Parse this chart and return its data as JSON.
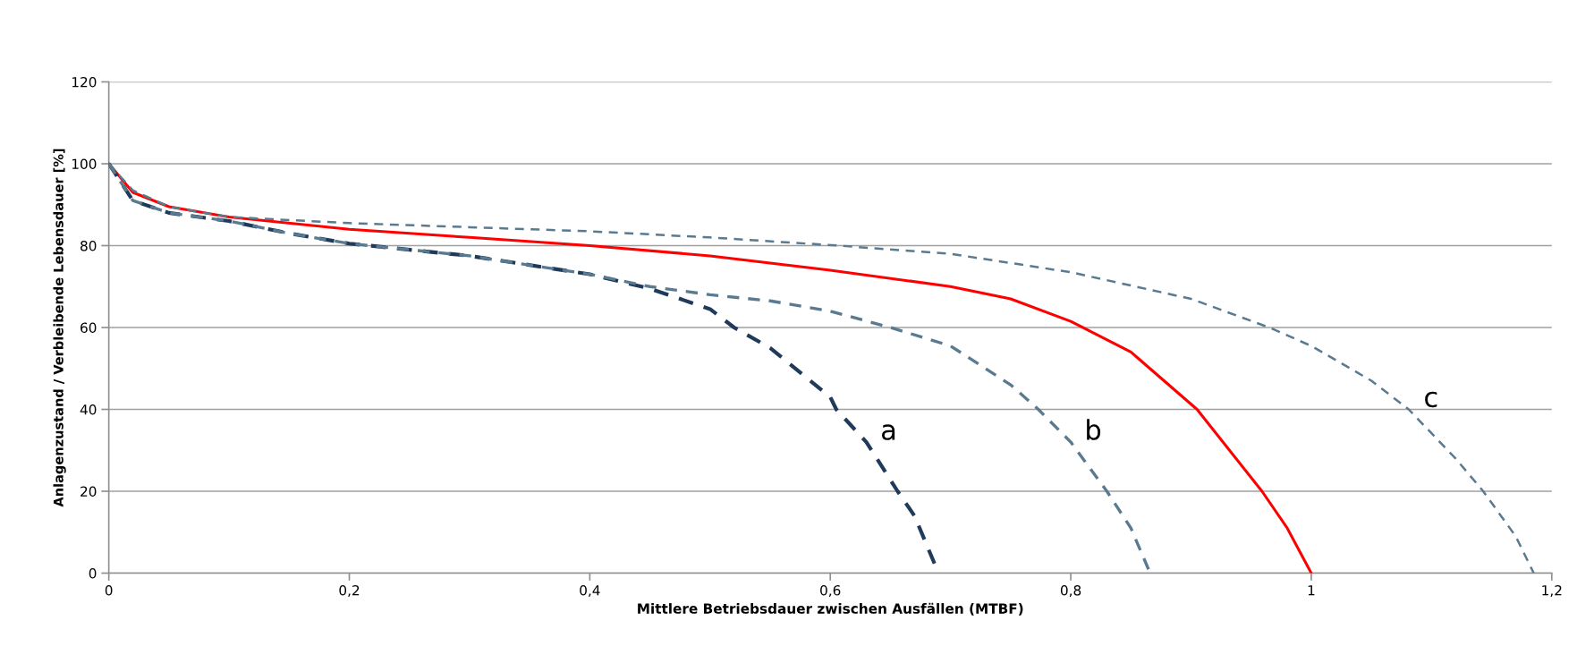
{
  "chart_data": {
    "type": "line",
    "xlabel": "Mittlere Betriebsdauer zwischen Ausfällen (MTBF)",
    "ylabel": "Anlagenzustand / Verbleibende Lebensdauer [%]",
    "xlim": [
      0,
      1.2
    ],
    "ylim": [
      0,
      120
    ],
    "xticks": [
      0,
      {
        "value": 0.2,
        "label": "0,2"
      },
      {
        "value": 0.4,
        "label": "0,4"
      },
      {
        "value": 0.6,
        "label": "0,6"
      },
      {
        "value": 0.8,
        "label": "0,8"
      },
      1,
      {
        "value": 1.2,
        "label": "1,2"
      }
    ],
    "yticks": [
      0,
      20,
      40,
      60,
      80,
      100,
      120
    ],
    "grid": "y",
    "legend": false,
    "marker": "none",
    "series": [
      {
        "color": "#ff0000",
        "line_style": "solid",
        "x": [
          0,
          0.02,
          0.05,
          0.1,
          0.2,
          0.3,
          0.4,
          0.5,
          0.6,
          0.7,
          0.75,
          0.8,
          0.85,
          0.905,
          0.959,
          0.98,
          1.0
        ],
        "values": [
          100,
          93,
          89.5,
          87,
          84,
          82,
          80,
          77.5,
          74,
          70,
          67,
          61.5,
          54,
          40,
          20,
          11,
          0
        ]
      },
      {
        "name": "a",
        "color": "#1f3a5a",
        "line_style": "dashed",
        "x": [
          0,
          0.02,
          0.05,
          0.1,
          0.15,
          0.2,
          0.3,
          0.4,
          0.45,
          0.5,
          0.52,
          0.55,
          0.6,
          0.605,
          0.63,
          0.656,
          0.67,
          0.69
        ],
        "values": [
          100,
          91,
          88,
          86,
          83,
          80.5,
          77.5,
          73,
          69.5,
          64.5,
          60,
          55,
          43,
          40,
          32,
          20,
          14,
          0
        ]
      },
      {
        "name": "b",
        "color": "#5a7a90",
        "line_style": "dashed",
        "x": [
          0,
          0.02,
          0.05,
          0.1,
          0.15,
          0.2,
          0.3,
          0.4,
          0.45,
          0.5,
          0.55,
          0.6,
          0.65,
          0.7,
          0.75,
          0.773,
          0.8,
          0.83,
          0.85,
          0.866
        ],
        "values": [
          100,
          91,
          88,
          86,
          83,
          80.5,
          77.5,
          73,
          70,
          68,
          66.5,
          64,
          60,
          55.5,
          46,
          40,
          32,
          20,
          11,
          0
        ]
      },
      {
        "name": "c",
        "color": "#5a7a90",
        "line_style": "dashed",
        "x": [
          0,
          0.02,
          0.05,
          0.1,
          0.2,
          0.3,
          0.4,
          0.5,
          0.607,
          0.7,
          0.8,
          0.9,
          0.965,
          1.0,
          1.05,
          1.081,
          1.12,
          1.143,
          1.17,
          1.185
        ],
        "values": [
          100,
          93.5,
          89.5,
          87,
          85.5,
          84.5,
          83.5,
          82,
          80,
          78,
          73.5,
          67,
          60,
          55.5,
          47,
          40,
          28,
          20,
          9,
          0
        ]
      }
    ]
  }
}
